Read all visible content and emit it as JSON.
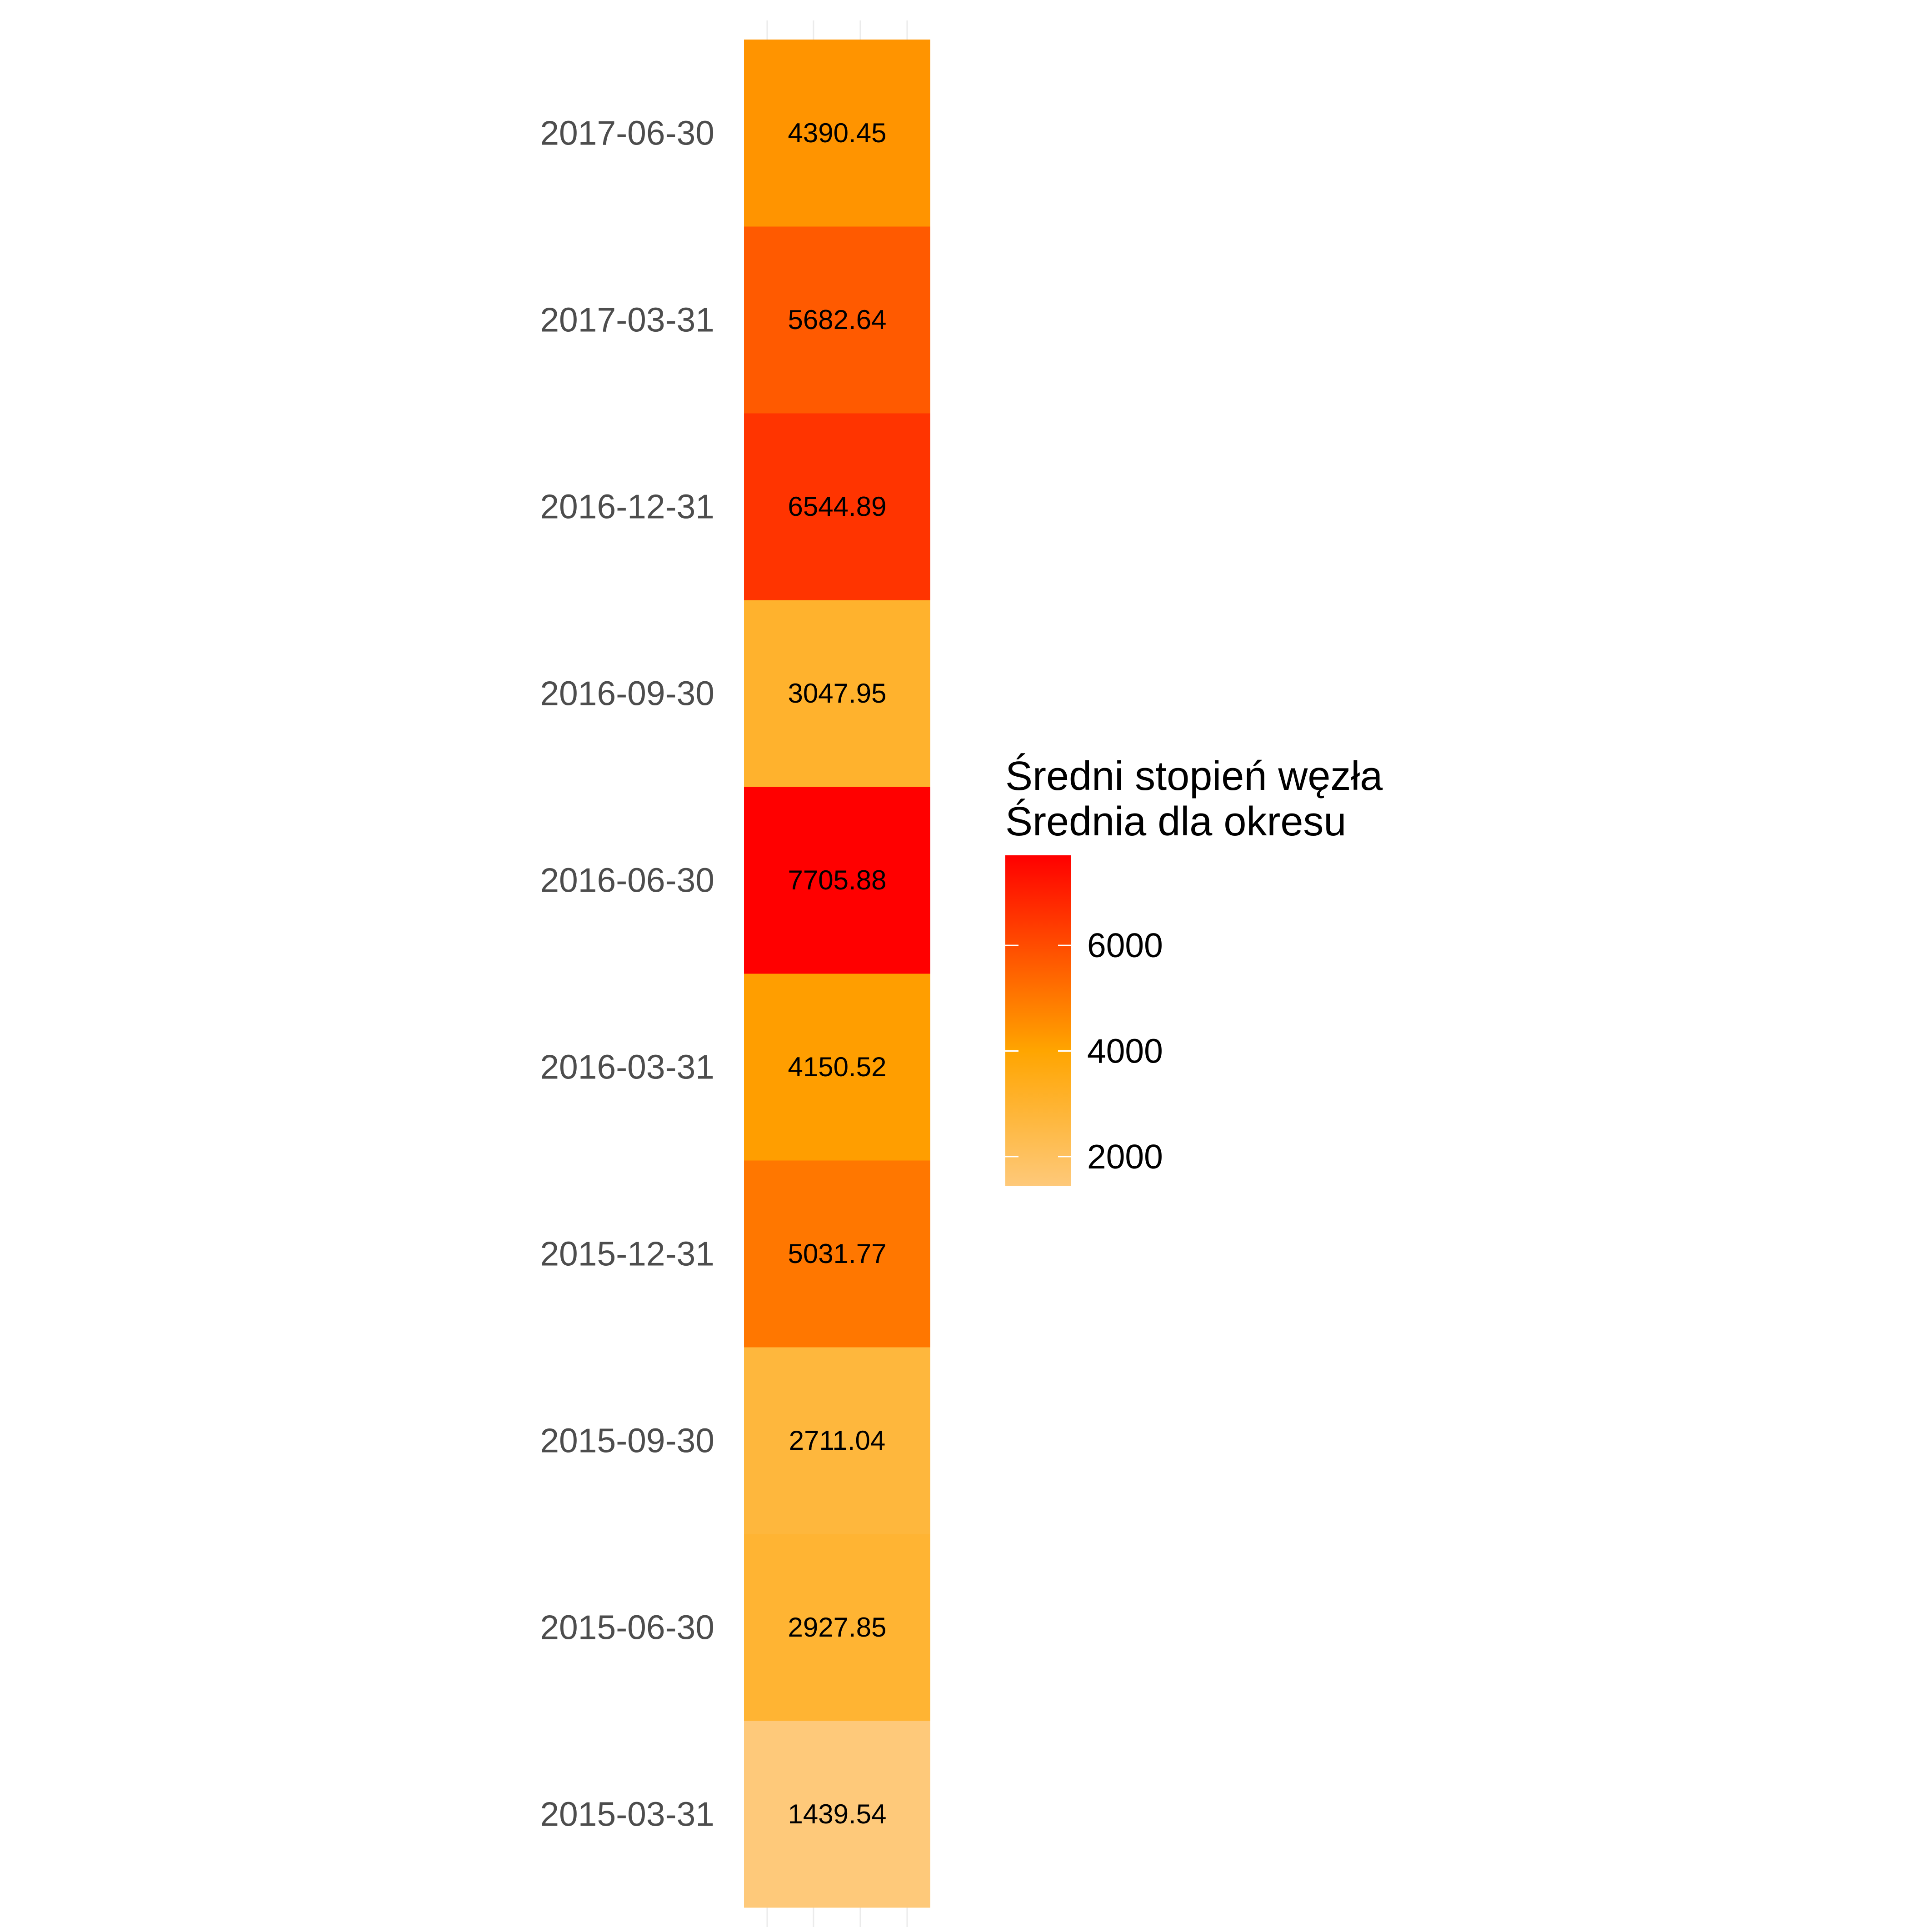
{
  "chart_data": {
    "type": "heatmap",
    "categories": [
      "2015-03-31",
      "2015-06-30",
      "2015-09-30",
      "2015-12-31",
      "2016-03-31",
      "2016-06-30",
      "2016-09-30",
      "2016-12-31",
      "2017-03-31",
      "2017-06-30"
    ],
    "values": [
      1439.54,
      2927.85,
      2711.04,
      5031.77,
      4150.52,
      7705.88,
      3047.95,
      6544.89,
      5682.64,
      4390.45
    ],
    "value_labels": [
      "1439.54",
      "2927.85",
      "2711.04",
      "5031.77",
      "4150.52",
      "7705.88",
      "3047.95",
      "6544.89",
      "5682.64",
      "4390.45"
    ],
    "legend": {
      "title_lines": [
        "Średni stopień węzła",
        "Średnia dla okresu"
      ],
      "ticks": [
        2000,
        4000,
        6000
      ],
      "tick_labels": [
        "2000",
        "4000",
        "6000"
      ],
      "range": [
        1439.54,
        7705.88
      ],
      "placement": "right"
    },
    "colors": {
      "low": "#fec97a",
      "mid": "#ffa500",
      "high": "#ff0000",
      "axis_text": "#4d4d4d",
      "grid": "#ebebeb"
    }
  }
}
